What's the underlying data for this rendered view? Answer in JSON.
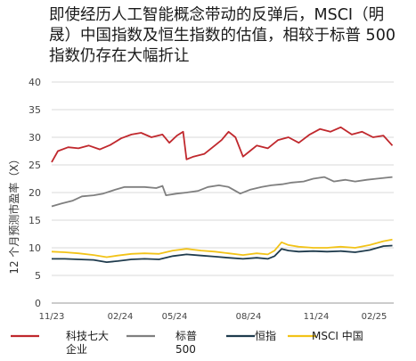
{
  "chart_data": {
    "type": "line",
    "title_lines": [
      "即使经历人工智能概念带动的反弹后，MSCI（明",
      "晟）中国指数及恒生指数的估值，相较于标普 500",
      "指数仍存在大幅折让"
    ],
    "ylabel": "12 个月预测市盈率（X）",
    "ylim": [
      0,
      40
    ],
    "yticks": [
      "0",
      "5",
      "10",
      "15",
      "20",
      "25",
      "30",
      "35",
      "40"
    ],
    "xticks": [
      "11/23",
      "02/24",
      "05/24",
      "08/24",
      "11/24",
      "02/25"
    ],
    "grid": true,
    "legend_position": "bottom",
    "x_range": [
      "2023-11",
      "2025-03"
    ],
    "series": [
      {
        "name_lines": [
          "科技七大",
          "企业"
        ],
        "color": "#c0282d",
        "points": [
          [
            "2023-11-01",
            25.5
          ],
          [
            "2023-11-10",
            27.5
          ],
          [
            "2023-11-25",
            28.2
          ],
          [
            "2023-12-10",
            28.0
          ],
          [
            "2023-12-25",
            28.5
          ],
          [
            "2024-01-10",
            27.8
          ],
          [
            "2024-01-25",
            28.6
          ],
          [
            "2024-02-10",
            29.8
          ],
          [
            "2024-02-25",
            30.5
          ],
          [
            "2024-03-10",
            30.8
          ],
          [
            "2024-03-25",
            30.0
          ],
          [
            "2024-04-10",
            30.5
          ],
          [
            "2024-04-20",
            29.0
          ],
          [
            "2024-05-01",
            30.3
          ],
          [
            "2024-05-10",
            31.0
          ],
          [
            "2024-05-15",
            26.0
          ],
          [
            "2024-05-25",
            26.5
          ],
          [
            "2024-06-10",
            27.0
          ],
          [
            "2024-06-25",
            28.5
          ],
          [
            "2024-07-05",
            29.5
          ],
          [
            "2024-07-15",
            31.0
          ],
          [
            "2024-07-25",
            30.0
          ],
          [
            "2024-08-05",
            26.5
          ],
          [
            "2024-08-15",
            27.5
          ],
          [
            "2024-08-25",
            28.5
          ],
          [
            "2024-09-10",
            28.0
          ],
          [
            "2024-09-25",
            29.5
          ],
          [
            "2024-10-10",
            30.0
          ],
          [
            "2024-10-25",
            29.0
          ],
          [
            "2024-11-10",
            30.5
          ],
          [
            "2024-11-25",
            31.5
          ],
          [
            "2024-12-10",
            31.0
          ],
          [
            "2024-12-25",
            31.8
          ],
          [
            "2025-01-10",
            30.5
          ],
          [
            "2025-01-25",
            31.0
          ],
          [
            "2025-02-10",
            30.0
          ],
          [
            "2025-02-25",
            30.3
          ],
          [
            "2025-03-10",
            28.5
          ]
        ]
      },
      {
        "name_lines": [
          "标普",
          "500"
        ],
        "color": "#7f7f7f",
        "points": [
          [
            "2023-11-01",
            17.5
          ],
          [
            "2023-11-15",
            18.0
          ],
          [
            "2023-12-01",
            18.5
          ],
          [
            "2023-12-15",
            19.3
          ],
          [
            "2024-01-01",
            19.5
          ],
          [
            "2024-01-15",
            19.8
          ],
          [
            "2024-02-01",
            20.5
          ],
          [
            "2024-02-15",
            21.0
          ],
          [
            "2024-03-01",
            21.0
          ],
          [
            "2024-03-15",
            21.0
          ],
          [
            "2024-04-01",
            20.8
          ],
          [
            "2024-04-10",
            21.2
          ],
          [
            "2024-04-15",
            19.5
          ],
          [
            "2024-05-01",
            19.8
          ],
          [
            "2024-05-15",
            20.0
          ],
          [
            "2024-06-01",
            20.3
          ],
          [
            "2024-06-15",
            21.0
          ],
          [
            "2024-07-01",
            21.3
          ],
          [
            "2024-07-15",
            21.0
          ],
          [
            "2024-08-01",
            19.8
          ],
          [
            "2024-08-15",
            20.5
          ],
          [
            "2024-09-01",
            21.0
          ],
          [
            "2024-09-15",
            21.3
          ],
          [
            "2024-10-01",
            21.5
          ],
          [
            "2024-10-15",
            21.8
          ],
          [
            "2024-11-01",
            22.0
          ],
          [
            "2024-11-15",
            22.5
          ],
          [
            "2024-12-01",
            22.8
          ],
          [
            "2024-12-15",
            22.0
          ],
          [
            "2025-01-01",
            22.3
          ],
          [
            "2025-01-15",
            22.0
          ],
          [
            "2025-02-01",
            22.3
          ],
          [
            "2025-02-15",
            22.5
          ],
          [
            "2025-03-10",
            22.8
          ]
        ]
      },
      {
        "name_lines": [
          "恒指"
        ],
        "color": "#1f3b4d",
        "points": [
          [
            "2023-11-01",
            8.0
          ],
          [
            "2023-11-20",
            8.0
          ],
          [
            "2023-12-10",
            7.9
          ],
          [
            "2024-01-01",
            7.8
          ],
          [
            "2024-01-20",
            7.4
          ],
          [
            "2024-02-05",
            7.6
          ],
          [
            "2024-02-25",
            7.9
          ],
          [
            "2024-03-15",
            8.0
          ],
          [
            "2024-04-05",
            7.9
          ],
          [
            "2024-04-25",
            8.5
          ],
          [
            "2024-05-15",
            8.8
          ],
          [
            "2024-06-05",
            8.6
          ],
          [
            "2024-06-25",
            8.4
          ],
          [
            "2024-07-15",
            8.2
          ],
          [
            "2024-08-05",
            8.0
          ],
          [
            "2024-08-25",
            8.2
          ],
          [
            "2024-09-10",
            8.0
          ],
          [
            "2024-09-20",
            8.5
          ],
          [
            "2024-09-30",
            9.8
          ],
          [
            "2024-10-10",
            9.5
          ],
          [
            "2024-10-25",
            9.3
          ],
          [
            "2024-11-15",
            9.4
          ],
          [
            "2024-12-05",
            9.3
          ],
          [
            "2024-12-25",
            9.4
          ],
          [
            "2025-01-15",
            9.2
          ],
          [
            "2025-02-05",
            9.6
          ],
          [
            "2025-02-25",
            10.3
          ],
          [
            "2025-03-10",
            10.4
          ]
        ]
      },
      {
        "name_lines": [
          "MSCI 中国"
        ],
        "color": "#f2c318",
        "points": [
          [
            "2023-11-01",
            9.3
          ],
          [
            "2023-11-20",
            9.2
          ],
          [
            "2023-12-10",
            9.0
          ],
          [
            "2024-01-01",
            8.7
          ],
          [
            "2024-01-20",
            8.3
          ],
          [
            "2024-02-05",
            8.6
          ],
          [
            "2024-02-25",
            8.9
          ],
          [
            "2024-03-15",
            9.0
          ],
          [
            "2024-04-05",
            8.9
          ],
          [
            "2024-04-25",
            9.5
          ],
          [
            "2024-05-15",
            9.8
          ],
          [
            "2024-06-05",
            9.5
          ],
          [
            "2024-06-25",
            9.3
          ],
          [
            "2024-07-15",
            9.0
          ],
          [
            "2024-08-05",
            8.7
          ],
          [
            "2024-08-25",
            9.0
          ],
          [
            "2024-09-10",
            8.8
          ],
          [
            "2024-09-20",
            9.5
          ],
          [
            "2024-09-30",
            11.0
          ],
          [
            "2024-10-10",
            10.5
          ],
          [
            "2024-10-25",
            10.2
          ],
          [
            "2024-11-15",
            10.0
          ],
          [
            "2024-12-05",
            10.0
          ],
          [
            "2024-12-25",
            10.2
          ],
          [
            "2025-01-15",
            10.0
          ],
          [
            "2025-02-05",
            10.5
          ],
          [
            "2025-02-25",
            11.2
          ],
          [
            "2025-03-10",
            11.5
          ]
        ]
      }
    ]
  }
}
